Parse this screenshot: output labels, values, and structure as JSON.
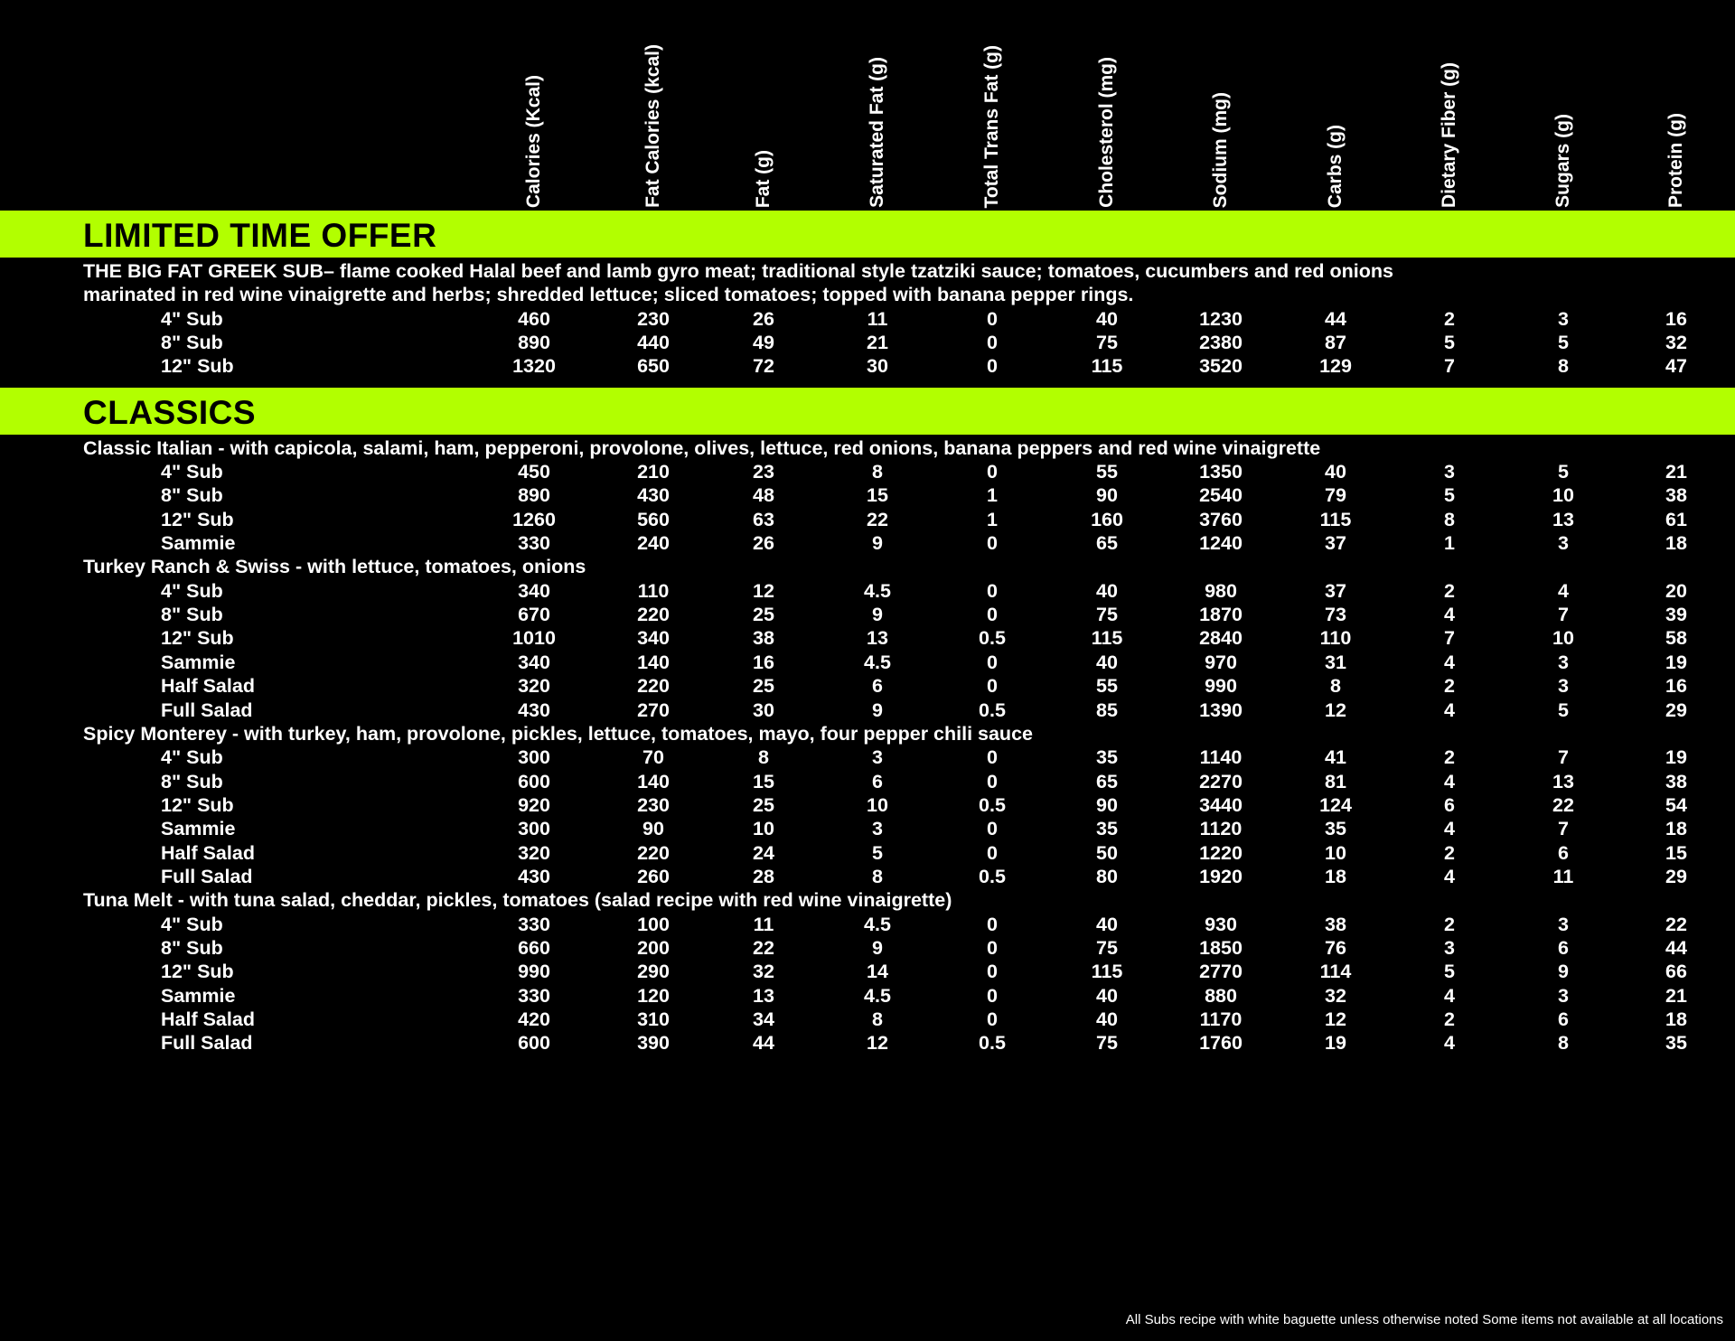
{
  "columns": [
    "Calories (Kcal)",
    "Fat Calories (kcal)",
    "Fat (g)",
    "Saturated Fat (g)",
    "Total Trans Fat (g)",
    "Cholesterol (mg)",
    "Sodium (mg)",
    "Carbs (g)",
    "Dietary Fiber (g)",
    "Sugars (g)",
    "Protein (g)"
  ],
  "accent_color": "#b2ff00",
  "sections": [
    {
      "title": "LIMITED TIME OFFER",
      "items": [
        {
          "description_lines": [
            "THE BIG FAT GREEK SUB– flame cooked Halal beef and lamb gyro meat; traditional style tzatziki sauce; tomatoes, cucumbers and red onions",
            "marinated in red wine vinaigrette and herbs; shredded lettuce; sliced tomatoes; topped with banana pepper rings."
          ],
          "rows": [
            {
              "size": "4\" Sub",
              "values": [
                "460",
                "230",
                "26",
                "11",
                "0",
                "40",
                "1230",
                "44",
                "2",
                "3",
                "16"
              ]
            },
            {
              "size": "8\" Sub",
              "values": [
                "890",
                "440",
                "49",
                "21",
                "0",
                "75",
                "2380",
                "87",
                "5",
                "5",
                "32"
              ]
            },
            {
              "size": "12\" Sub",
              "values": [
                "1320",
                "650",
                "72",
                "30",
                "0",
                "115",
                "3520",
                "129",
                "7",
                "8",
                "47"
              ]
            }
          ]
        }
      ]
    },
    {
      "title": "CLASSICS",
      "items": [
        {
          "description_lines": [
            "Classic Italian - with capicola, salami, ham, pepperoni, provolone, olives, lettuce, red onions, banana peppers and red wine vinaigrette"
          ],
          "rows": [
            {
              "size": "4\" Sub",
              "values": [
                "450",
                "210",
                "23",
                "8",
                "0",
                "55",
                "1350",
                "40",
                "3",
                "5",
                "21"
              ]
            },
            {
              "size": "8\" Sub",
              "values": [
                "890",
                "430",
                "48",
                "15",
                "1",
                "90",
                "2540",
                "79",
                "5",
                "10",
                "38"
              ]
            },
            {
              "size": "12\" Sub",
              "values": [
                "1260",
                "560",
                "63",
                "22",
                "1",
                "160",
                "3760",
                "115",
                "8",
                "13",
                "61"
              ]
            },
            {
              "size": "Sammie",
              "values": [
                "330",
                "240",
                "26",
                "9",
                "0",
                "65",
                "1240",
                "37",
                "1",
                "3",
                "18"
              ]
            }
          ]
        },
        {
          "description_lines": [
            "Turkey Ranch & Swiss - with lettuce, tomatoes, onions"
          ],
          "rows": [
            {
              "size": "4\" Sub",
              "values": [
                "340",
                "110",
                "12",
                "4.5",
                "0",
                "40",
                "980",
                "37",
                "2",
                "4",
                "20"
              ]
            },
            {
              "size": "8\" Sub",
              "values": [
                "670",
                "220",
                "25",
                "9",
                "0",
                "75",
                "1870",
                "73",
                "4",
                "7",
                "39"
              ]
            },
            {
              "size": "12\" Sub",
              "values": [
                "1010",
                "340",
                "38",
                "13",
                "0.5",
                "115",
                "2840",
                "110",
                "7",
                "10",
                "58"
              ]
            },
            {
              "size": "Sammie",
              "values": [
                "340",
                "140",
                "16",
                "4.5",
                "0",
                "40",
                "970",
                "31",
                "4",
                "3",
                "19"
              ]
            },
            {
              "size": "Half Salad",
              "values": [
                "320",
                "220",
                "25",
                "6",
                "0",
                "55",
                "990",
                "8",
                "2",
                "3",
                "16"
              ]
            },
            {
              "size": "Full Salad",
              "values": [
                "430",
                "270",
                "30",
                "9",
                "0.5",
                "85",
                "1390",
                "12",
                "4",
                "5",
                "29"
              ]
            }
          ]
        },
        {
          "description_lines": [
            "Spicy Monterey - with turkey, ham, provolone, pickles, lettuce, tomatoes, mayo, four pepper chili sauce"
          ],
          "rows": [
            {
              "size": "4\" Sub",
              "values": [
                "300",
                "70",
                "8",
                "3",
                "0",
                "35",
                "1140",
                "41",
                "2",
                "7",
                "19"
              ]
            },
            {
              "size": "8\" Sub",
              "values": [
                "600",
                "140",
                "15",
                "6",
                "0",
                "65",
                "2270",
                "81",
                "4",
                "13",
                "38"
              ]
            },
            {
              "size": "12\" Sub",
              "values": [
                "920",
                "230",
                "25",
                "10",
                "0.5",
                "90",
                "3440",
                "124",
                "6",
                "22",
                "54"
              ]
            },
            {
              "size": "Sammie",
              "values": [
                "300",
                "90",
                "10",
                "3",
                "0",
                "35",
                "1120",
                "35",
                "4",
                "7",
                "18"
              ]
            },
            {
              "size": "Half Salad",
              "values": [
                "320",
                "220",
                "24",
                "5",
                "0",
                "50",
                "1220",
                "10",
                "2",
                "6",
                "15"
              ]
            },
            {
              "size": "Full Salad",
              "values": [
                "430",
                "260",
                "28",
                "8",
                "0.5",
                "80",
                "1920",
                "18",
                "4",
                "11",
                "29"
              ]
            }
          ]
        },
        {
          "description_lines": [
            "Tuna Melt - with tuna salad, cheddar, pickles, tomatoes (salad recipe with red wine vinaigrette)"
          ],
          "rows": [
            {
              "size": "4\" Sub",
              "values": [
                "330",
                "100",
                "11",
                "4.5",
                "0",
                "40",
                "930",
                "38",
                "2",
                "3",
                "22"
              ]
            },
            {
              "size": "8\" Sub",
              "values": [
                "660",
                "200",
                "22",
                "9",
                "0",
                "75",
                "1850",
                "76",
                "3",
                "6",
                "44"
              ]
            },
            {
              "size": "12\" Sub",
              "values": [
                "990",
                "290",
                "32",
                "14",
                "0",
                "115",
                "2770",
                "114",
                "5",
                "9",
                "66"
              ]
            },
            {
              "size": "Sammie",
              "values": [
                "330",
                "120",
                "13",
                "4.5",
                "0",
                "40",
                "880",
                "32",
                "4",
                "3",
                "21"
              ]
            },
            {
              "size": "Half Salad",
              "values": [
                "420",
                "310",
                "34",
                "8",
                "0",
                "40",
                "1170",
                "12",
                "2",
                "6",
                "18"
              ]
            },
            {
              "size": "Full Salad",
              "values": [
                "600",
                "390",
                "44",
                "12",
                "0.5",
                "75",
                "1760",
                "19",
                "4",
                "8",
                "35"
              ]
            }
          ]
        }
      ]
    }
  ],
  "footer": "All Subs recipe with white baguette unless otherwise noted Some items not available at all locations"
}
